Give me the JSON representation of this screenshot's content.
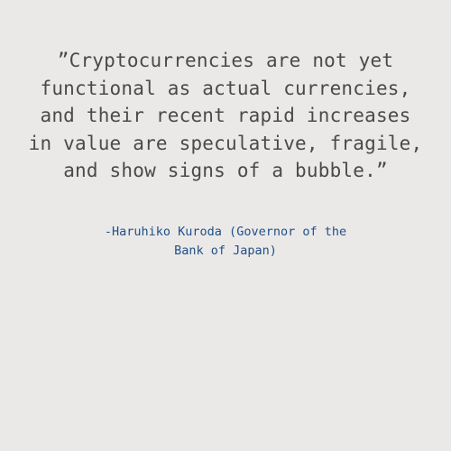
{
  "quote": {
    "lines": [
      "”Cryptocurrencies are not yet",
      "functional as actual currencies,",
      "and their recent rapid increases",
      "in value are speculative, fragile,",
      "and show signs of a bubble.”"
    ],
    "color": "#4a4a4a"
  },
  "attribution": {
    "lines": [
      "-Haruhiko Kuroda (Governor of the",
      "Bank of Japan)"
    ],
    "color": "#1f4f8a"
  },
  "background": "#ebe9e7"
}
